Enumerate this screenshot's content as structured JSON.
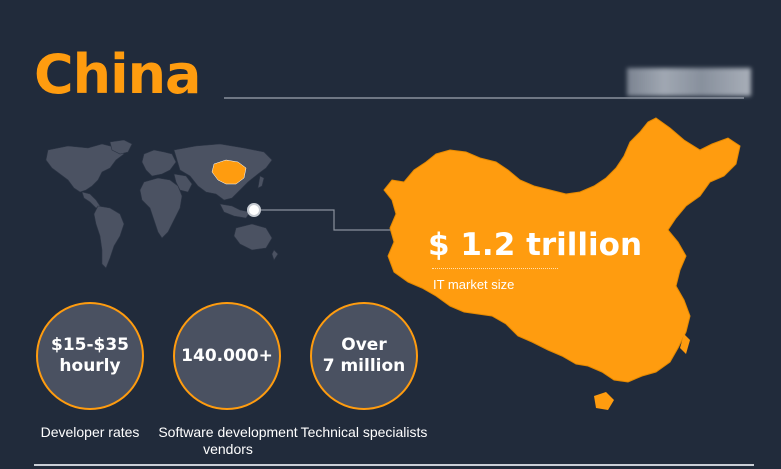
{
  "header": {
    "title": "China"
  },
  "market": {
    "value": "$ 1.2 trillion",
    "label": "IT market size"
  },
  "stats": [
    {
      "value": "$15-$35\nhourly",
      "caption": "Developer rates"
    },
    {
      "value": "140.000+",
      "caption": "Software development vendors"
    },
    {
      "value": "Over\n7 million",
      "caption": "Technical specialists"
    }
  ],
  "colors": {
    "background": "#212b3b",
    "accent": "#ff9c0f",
    "circle_fill": "#4a5161",
    "map_gray": "#4b5262"
  }
}
